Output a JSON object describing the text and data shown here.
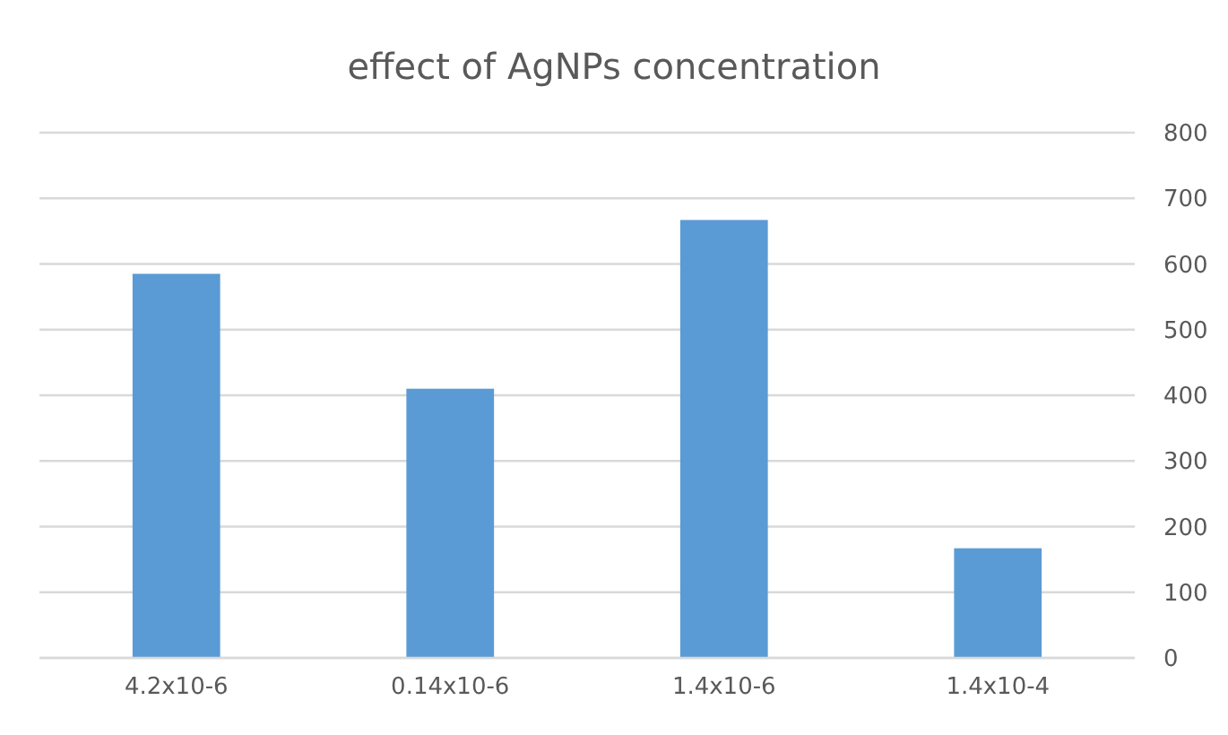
{
  "chart_data": {
    "type": "bar",
    "title": "effect of AgNPs concentration",
    "categories": [
      "4.2x10-6",
      "0.14x10-6",
      "1.4x10-6",
      "1.4x10-4"
    ],
    "values": [
      585,
      410,
      667,
      167
    ],
    "color": "#5b9bd5",
    "ylim": [
      0,
      800
    ],
    "yticks": [
      0,
      100,
      200,
      300,
      400,
      500,
      600,
      700,
      800
    ],
    "grid": "y"
  }
}
